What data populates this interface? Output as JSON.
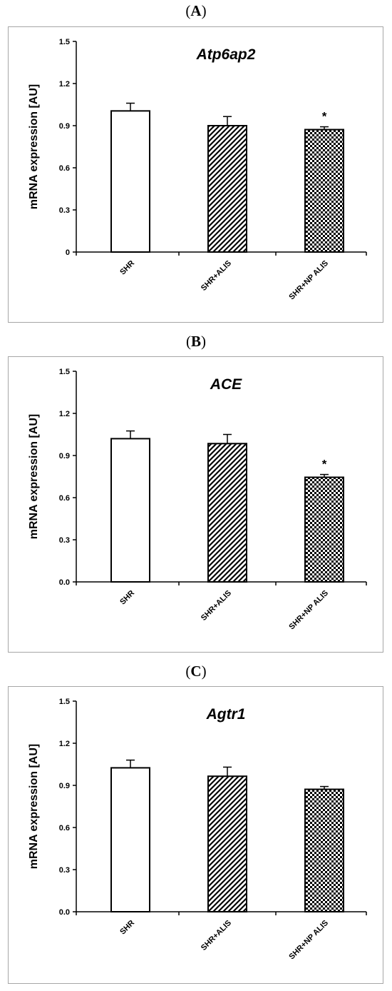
{
  "chart_data": [
    {
      "panel_label": "A",
      "type": "bar",
      "title": "Atp6ap2",
      "ylabel": "mRNA expression  [AU]",
      "xlabel": "",
      "ylim": [
        0,
        1.5
      ],
      "yticks": [
        "0",
        "0.3",
        "0.6",
        "0.9",
        "1.2",
        "1.5"
      ],
      "categories": [
        "SHR",
        "SHR+ALIS",
        "SHR+NP ALIS"
      ],
      "values": [
        1.005,
        0.9,
        0.872
      ],
      "errors": [
        0.055,
        0.065,
        0.02
      ],
      "patterns": [
        "white",
        "diagonal",
        "checker"
      ],
      "significance": [
        "",
        "",
        "*"
      ],
      "grid": false,
      "legend": "none"
    },
    {
      "panel_label": "B",
      "type": "bar",
      "title": "ACE",
      "ylabel": "mRNA expression  [AU]",
      "xlabel": "",
      "ylim": [
        0,
        1.5
      ],
      "yticks": [
        "0.0",
        "0.3",
        "0.6",
        "0.9",
        "1.2",
        "1.5"
      ],
      "categories": [
        "SHR",
        "SHR+ALIS",
        "SHR+NP ALIS"
      ],
      "values": [
        1.02,
        0.985,
        0.745
      ],
      "errors": [
        0.055,
        0.065,
        0.02
      ],
      "patterns": [
        "white",
        "diagonal",
        "checker"
      ],
      "significance": [
        "",
        "",
        "*"
      ],
      "grid": false,
      "legend": "none"
    },
    {
      "panel_label": "C",
      "type": "bar",
      "title": "Agtr1",
      "ylabel": "mRNA expression  [AU]",
      "xlabel": "",
      "ylim": [
        0,
        1.5
      ],
      "yticks": [
        "0.0",
        "0.3",
        "0.6",
        "0.9",
        "1.2",
        "1.5"
      ],
      "categories": [
        "SHR",
        "SHR+ALIS",
        "SHR+NP ALIS"
      ],
      "values": [
        1.025,
        0.965,
        0.872
      ],
      "errors": [
        0.055,
        0.065,
        0.02
      ],
      "patterns": [
        "white",
        "diagonal",
        "checker"
      ],
      "significance": [
        "",
        "",
        ""
      ],
      "grid": false,
      "legend": "none"
    }
  ]
}
